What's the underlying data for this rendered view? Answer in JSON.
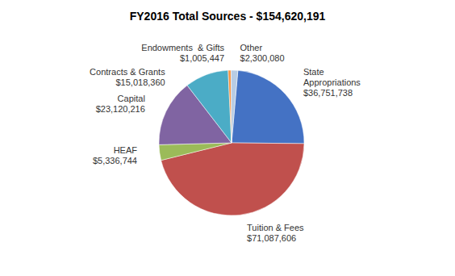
{
  "chart_data": {
    "type": "pie",
    "title": "FY2016 Total Sources - $154,620,191",
    "categories": [
      "State\nAppropriations",
      "Tuition & Fees",
      "HEAF",
      "Capital",
      "Contracts & Grants",
      "Endowments  & Gifts",
      "Other"
    ],
    "values": [
      36751738,
      71087606,
      5336744,
      23120216,
      15018360,
      1005447,
      2300080
    ],
    "value_labels": [
      "$36,751,738",
      "$71,087,606",
      "$5,336,744",
      "$23,120,216",
      "$15,018,360",
      "$1,005,447",
      "$2,300,080"
    ],
    "colors": [
      "#4472C4",
      "#C0504D",
      "#9BBB59",
      "#8064A2",
      "#4BACC6",
      "#F79646",
      "#B8CCE4"
    ]
  }
}
